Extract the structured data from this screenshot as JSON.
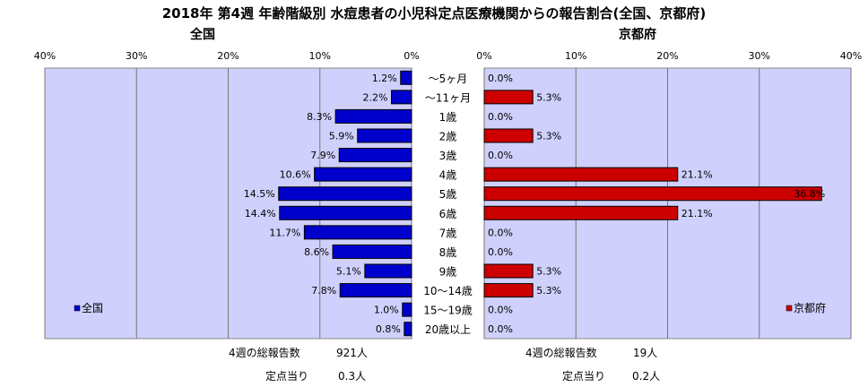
{
  "title": "2018年 第4週 年齢階級別 水痘患者の小児科定点医療機関からの報告割合(全国、京都府)",
  "colors": {
    "plot_bg": "#cfd0fb",
    "national_bar": "#0000cc",
    "kyoto_bar": "#cc0000",
    "gridline": "#777777"
  },
  "chart_data": [
    {
      "type": "bar",
      "orientation": "horizontal",
      "direction": "right-to-left",
      "title": "全国",
      "categories": [
        "～5ヶ月",
        "～11ヶ月",
        "1歳",
        "2歳",
        "3歳",
        "4歳",
        "5歳",
        "6歳",
        "7歳",
        "8歳",
        "9歳",
        "10～14歳",
        "15～19歳",
        "20歳以上"
      ],
      "series": [
        {
          "name": "全国",
          "values": [
            1.2,
            2.2,
            8.3,
            5.9,
            7.9,
            10.6,
            14.5,
            14.4,
            11.7,
            8.6,
            5.1,
            7.8,
            1.0,
            0.8
          ]
        }
      ],
      "value_labels": [
        "1.2%",
        "2.2%",
        "8.3%",
        "5.9%",
        "7.9%",
        "10.6%",
        "14.5%",
        "14.4%",
        "11.7%",
        "8.6%",
        "5.1%",
        "7.8%",
        "1.0%",
        "0.8%"
      ],
      "xlim": [
        0,
        40
      ],
      "xticks": [
        "40%",
        "30%",
        "20%",
        "10%",
        "0%"
      ],
      "grid": true,
      "legend": "bottom-left"
    },
    {
      "type": "bar",
      "orientation": "horizontal",
      "direction": "left-to-right",
      "title": "京都府",
      "categories": [
        "～5ヶ月",
        "～11ヶ月",
        "1歳",
        "2歳",
        "3歳",
        "4歳",
        "5歳",
        "6歳",
        "7歳",
        "8歳",
        "9歳",
        "10～14歳",
        "15～19歳",
        "20歳以上"
      ],
      "series": [
        {
          "name": "京都府",
          "values": [
            0.0,
            5.3,
            0.0,
            5.3,
            0.0,
            21.1,
            36.8,
            21.1,
            0.0,
            0.0,
            5.3,
            5.3,
            0.0,
            0.0
          ]
        }
      ],
      "value_labels": [
        "0.0%",
        "5.3%",
        "0.0%",
        "5.3%",
        "0.0%",
        "21.1%",
        "36.8%",
        "21.1%",
        "0.0%",
        "0.0%",
        "5.3%",
        "5.3%",
        "0.0%",
        "0.0%"
      ],
      "xlim": [
        0,
        40
      ],
      "xticks": [
        "0%",
        "10%",
        "20%",
        "30%",
        "40%"
      ],
      "grid": true,
      "legend": "bottom-right"
    }
  ],
  "footer": {
    "national_total_label": "4週の総報告数",
    "national_total_value": "921人",
    "national_per_label": "定点当り",
    "national_per_value": "0.3人",
    "kyoto_total_label": "4週の総報告数",
    "kyoto_total_value": "19人",
    "kyoto_per_label": "定点当り",
    "kyoto_per_value": "0.2人"
  }
}
